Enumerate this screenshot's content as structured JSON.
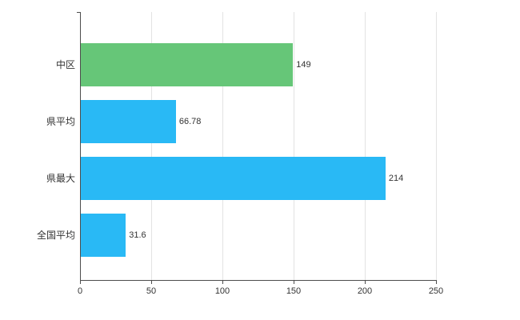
{
  "chart_data": {
    "type": "bar",
    "orientation": "horizontal",
    "title": "",
    "xlabel": "",
    "ylabel": "",
    "categories": [
      "中区",
      "県平均",
      "県最大",
      "全国平均"
    ],
    "values": [
      149,
      66.78,
      214,
      31.6
    ],
    "value_labels": [
      "149",
      "66.78",
      "214",
      "31.6"
    ],
    "bar_colors": [
      "#66c678",
      "#29b9f5",
      "#29b9f5",
      "#29b9f5"
    ],
    "xlim": [
      0,
      250
    ],
    "x_ticks": [
      0,
      50,
      100,
      150,
      200,
      250
    ],
    "x_tick_labels": [
      "0",
      "50",
      "100",
      "150",
      "200",
      "250"
    ],
    "grid": "vertical",
    "gridline_color": "#e3e3e3",
    "axis_color": "#4d4d4d",
    "legend": "none"
  }
}
